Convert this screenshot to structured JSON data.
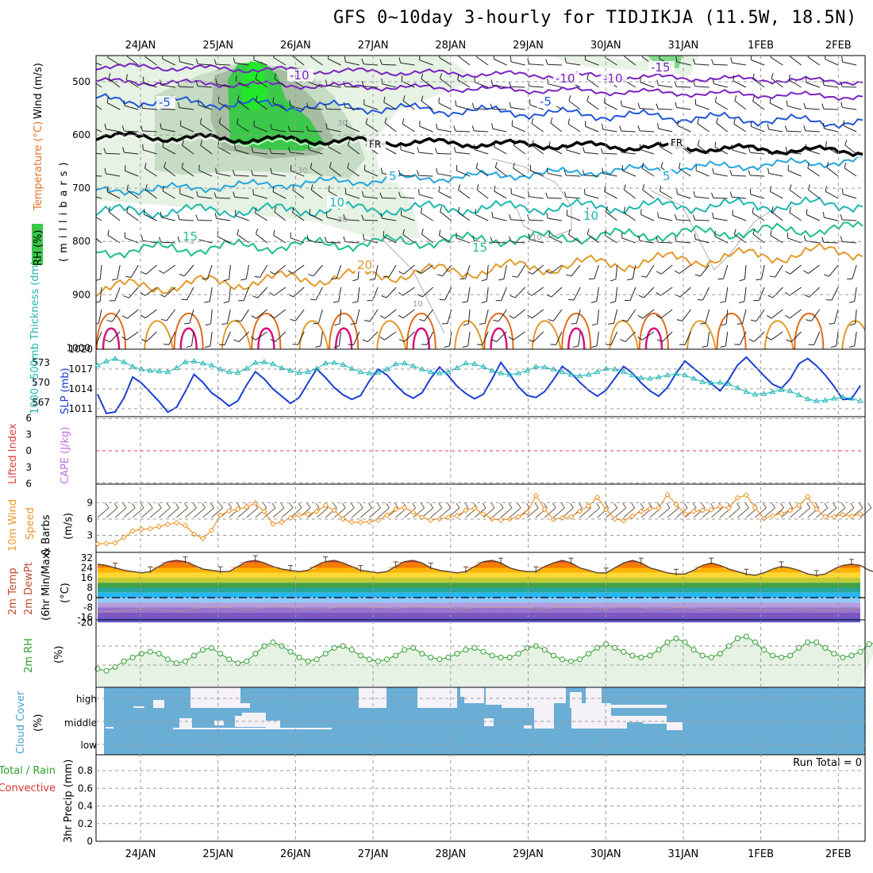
{
  "title": "GFS 0~10day 3-hourly for TIDJIKJA (11.5W, 18.5N)",
  "dates": [
    "24JAN",
    "25JAN",
    "26JAN",
    "27JAN",
    "28JAN",
    "29JAN",
    "30JAN",
    "31JAN",
    "1FEB",
    "2FEB"
  ],
  "colors": {
    "grid": "#9a9a9a",
    "rh_light": "#e6f2e3",
    "rh_mid": "#c7dcc4",
    "rh_dark": "#8fa98a",
    "rh_green": "#3cc84b",
    "rh_bright": "#22e82a",
    "isotherm_purple": "#7a22c4",
    "isotherm_blue": "#2157d8",
    "isotherm_sky": "#23a5e0",
    "isotherm_teal": "#1fb7b0",
    "isotherm_green": "#1fbf8a",
    "isotherm_orange": "#e29a2a",
    "isotherm_hot": "#e26a1a",
    "isotherm_magenta": "#d8127a",
    "slp": "#1a3dd4",
    "thickness": "#1fb6b6",
    "wind": "#f0962a",
    "rh2m": "#2f9e2f",
    "cloud": "#6aaed6",
    "cloud_gap": "#f4f1f7"
  },
  "upper_air": {
    "y_axis_label": "(millibars)",
    "y_ticks": [
      "500",
      "600",
      "700",
      "800",
      "900",
      "1000"
    ],
    "legend_labels": {
      "wind": "Wind (m/s)",
      "temp": "Temperature (°C)",
      "rh": "RH (%)"
    },
    "isotherm_labels": [
      "-15",
      "-10",
      "-10",
      "-10",
      "-5",
      "-5",
      "FR",
      "FR",
      "5",
      "5",
      "10",
      "10",
      "15",
      "15",
      "20"
    ],
    "rh_contour_labels": [
      "30",
      "30",
      "30",
      "10",
      "10"
    ]
  },
  "thickness_slp": {
    "labels": {
      "thickness": "1000~500mb Thickness (dm)",
      "slp": "SLP (mb)"
    },
    "y_ticks_left": [
      "573",
      "570",
      "567"
    ],
    "y_ticks_right": [
      "1017",
      "1014",
      "1011"
    ],
    "slp_mb": [
      1013.2,
      1010.3,
      1010.5,
      1012.6,
      1015.8,
      1014.9,
      1013.5,
      1012.1,
      1010.5,
      1011.2,
      1013.6,
      1016.2,
      1015.0,
      1013.4,
      1012.5,
      1011.4,
      1012.2,
      1014.6,
      1016.6,
      1015.5,
      1014.0,
      1012.9,
      1011.8,
      1012.7,
      1014.9,
      1017.0,
      1015.7,
      1014.2,
      1013.1,
      1012.4,
      1013.0,
      1015.2,
      1017.0,
      1016.1,
      1014.6,
      1013.3,
      1012.6,
      1013.4,
      1015.6,
      1017.3,
      1016.0,
      1014.4,
      1013.3,
      1012.5,
      1013.2,
      1015.5,
      1018.0,
      1016.2,
      1014.3,
      1013.0,
      1012.7,
      1013.6,
      1015.4,
      1017.4,
      1016.4,
      1015.0,
      1013.8,
      1012.9,
      1013.8,
      1015.6,
      1017.4,
      1016.4,
      1014.9,
      1013.7,
      1012.9,
      1014.2,
      1016.4,
      1018.2,
      1017.1,
      1016.0,
      1014.8,
      1013.7,
      1015.4,
      1017.6,
      1018.8,
      1017.4,
      1016.0,
      1014.7,
      1014.1,
      1015.5,
      1017.8,
      1018.6,
      1017.5,
      1016.1,
      1014.4,
      1012.4,
      1012.5,
      1014.5
    ],
    "thickness_dm": [
      572.6,
      573.2,
      573.6,
      573.1,
      572.4,
      572.0,
      571.8,
      571.7,
      571.6,
      572.2,
      573.1,
      573.2,
      572.9,
      572.6,
      572.0,
      571.6,
      571.5,
      572.1,
      573.0,
      573.1,
      572.8,
      572.2,
      571.8,
      571.5,
      571.6,
      572.1,
      572.9,
      573.0,
      572.7,
      572.1,
      571.6,
      571.4,
      571.5,
      572.0,
      572.8,
      572.9,
      572.5,
      572.0,
      571.6,
      571.4,
      571.6,
      572.2,
      572.9,
      572.8,
      572.4,
      571.8,
      571.4,
      571.2,
      571.4,
      571.8,
      572.4,
      572.3,
      572.0,
      571.6,
      571.2,
      571.0,
      571.2,
      571.6,
      572.1,
      572.0,
      571.6,
      571.1,
      570.7,
      570.6,
      570.8,
      571.1,
      571.3,
      571.1,
      570.6,
      570.1,
      569.9,
      570.0,
      569.8,
      569.2,
      568.6,
      568.2,
      568.3,
      568.6,
      568.9,
      568.7,
      568.1,
      567.5,
      567.2,
      567.3,
      567.6,
      567.8,
      567.6,
      567.2
    ]
  },
  "stability": {
    "labels": {
      "li": "Lifted Index",
      "cape": "CAPE (J/kg)"
    },
    "y_ticks": [
      "6",
      "3",
      "0",
      "3",
      "6"
    ]
  },
  "wind10m": {
    "labels": {
      "title": "10m Wind",
      "speed": "Speed",
      "barbs": "& Barbs",
      "unit": "(m/s)"
    },
    "y_ticks": [
      "9",
      "6",
      "3"
    ],
    "speed_ms": [
      1.4,
      1.5,
      1.6,
      2.6,
      3.8,
      4.1,
      4.2,
      4.6,
      5.0,
      5.3,
      4.8,
      3.2,
      2.4,
      3.9,
      6.7,
      7.5,
      7.8,
      8.2,
      8.9,
      7.4,
      5.1,
      5.4,
      6.2,
      6.7,
      6.9,
      7.4,
      8.5,
      7.6,
      6.0,
      5.4,
      5.4,
      5.5,
      5.8,
      6.7,
      7.8,
      8.1,
      7.2,
      6.3,
      5.8,
      6.0,
      6.3,
      6.6,
      7.6,
      8.0,
      6.9,
      6.0,
      5.8,
      6.0,
      6.4,
      7.2,
      10.3,
      7.8,
      5.9,
      6.2,
      6.4,
      7.4,
      8.4,
      10.0,
      7.8,
      6.0,
      5.7,
      6.5,
      7.4,
      7.9,
      8.0,
      10.5,
      8.7,
      6.9,
      7.4,
      7.6,
      7.7,
      8.3,
      8.0,
      9.9,
      10.4,
      8.1,
      6.1,
      6.6,
      7.0,
      7.6,
      8.5,
      10.1,
      7.8,
      6.4,
      6.4,
      6.8,
      6.5,
      6.9
    ]
  },
  "temp2m": {
    "labels": {
      "temp": "2m Temp",
      "dew": "2m DewPt",
      "minmax": "(6hr Min/Max)",
      "unit": "(°C)"
    },
    "y_ticks": [
      "32",
      "24",
      "16",
      "8",
      "0",
      "-8",
      "-16",
      "-20"
    ],
    "temp_c": [
      27,
      26,
      24,
      22,
      21,
      20,
      21,
      25,
      29,
      30,
      29,
      26,
      23,
      22,
      21,
      21,
      25,
      29,
      30,
      28,
      25,
      23,
      22,
      21,
      22,
      26,
      29,
      30,
      28,
      25,
      22,
      21,
      20,
      21,
      25,
      29,
      30,
      28,
      24,
      22,
      21,
      20,
      21,
      25,
      29,
      30,
      28,
      24,
      22,
      21,
      21,
      25,
      28,
      30,
      28,
      24,
      22,
      20,
      20,
      24,
      28,
      30,
      28,
      24,
      22,
      20,
      19,
      19,
      22,
      26,
      28,
      26,
      23,
      21,
      19,
      18,
      20,
      23,
      25,
      24,
      22,
      19,
      18,
      19,
      23,
      26,
      27,
      26,
      22,
      20
    ],
    "dewpoint_c": [
      -12,
      -11,
      -11,
      -10,
      -10,
      -9,
      -9,
      -10,
      -10,
      -11,
      -10,
      -9,
      -8,
      -8,
      -8,
      -8,
      -9,
      -10,
      -9,
      -8,
      -7,
      -7,
      -7,
      -8,
      -9,
      -9,
      -9,
      -8,
      -7,
      -7,
      -7,
      -8,
      -8,
      -8,
      -9,
      -8,
      -7,
      -7,
      -8,
      -8,
      -8,
      -9,
      -9,
      -8,
      -8,
      -8,
      -8,
      -8,
      -8,
      -8,
      -9,
      -9,
      -8,
      -8,
      -8,
      -8,
      -8,
      -9,
      -9,
      -8,
      -7,
      -7,
      -8,
      -9,
      -9,
      -9,
      -8,
      -8,
      -9,
      -10,
      -10,
      -9,
      -9,
      -10,
      -10,
      -10,
      -10,
      -10,
      -10,
      -10,
      -9,
      -9,
      -10,
      -10,
      -10,
      -10,
      -9,
      -9
    ]
  },
  "rh2m": {
    "labels": {
      "title": "2m RH",
      "unit": "(%)"
    },
    "rh_pct": [
      8,
      7,
      9,
      12,
      14,
      16,
      17,
      16,
      13,
      11,
      12,
      15,
      18,
      19,
      16,
      13,
      11,
      12,
      16,
      20,
      22,
      20,
      17,
      14,
      12,
      13,
      16,
      19,
      20,
      18,
      15,
      13,
      12,
      13,
      15,
      18,
      19,
      16,
      14,
      13,
      14,
      16,
      18,
      19,
      17,
      15,
      14,
      14,
      16,
      19,
      20,
      18,
      15,
      13,
      12,
      13,
      16,
      19,
      21,
      19,
      17,
      15,
      14,
      15,
      18,
      22,
      24,
      22,
      18,
      15,
      14,
      16,
      20,
      24,
      25,
      22,
      18,
      15,
      14,
      15,
      19,
      22,
      22,
      19,
      16,
      14,
      15,
      17,
      21,
      22
    ],
    "ylim": [
      0,
      30
    ]
  },
  "cloud": {
    "labels": {
      "title": "Cloud Cover",
      "unit": "(%)",
      "high": "high",
      "middle": "middle",
      "low": "low"
    }
  },
  "precip": {
    "labels": {
      "title": "3hr Precip (mm)",
      "total_rain": "Total / Rain",
      "convective": "Convective",
      "run_total": "Run Total = 0"
    },
    "y_ticks": [
      "0.8",
      "0.6",
      "0.4",
      "0.2",
      "0"
    ]
  }
}
